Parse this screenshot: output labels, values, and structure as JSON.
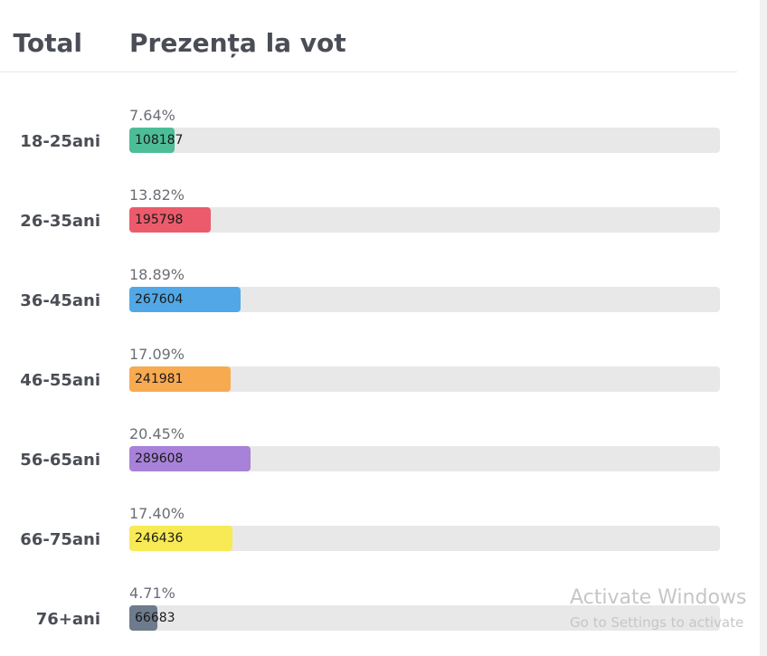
{
  "header": {
    "total_label": "Total",
    "title": "Prezența la vot"
  },
  "chart_data": {
    "type": "bar",
    "orientation": "horizontal",
    "categories": [
      "18-25ani",
      "26-35ani",
      "36-45ani",
      "46-55ani",
      "56-65ani",
      "66-75ani",
      "76+ani"
    ],
    "values": [
      108187,
      195798,
      267604,
      241981,
      289608,
      246436,
      66683
    ],
    "value_labels": [
      "108187",
      "195798",
      "267604",
      "241981",
      "289608",
      "246436",
      "66683"
    ],
    "percent_labels": [
      "7.64%",
      "13.82%",
      "18.89%",
      "17.09%",
      "20.45%",
      "17.40%",
      "4.71%"
    ],
    "percents": [
      7.64,
      13.82,
      18.89,
      17.09,
      20.45,
      17.4,
      4.71
    ],
    "xlim": [
      0,
      100
    ],
    "grid": false,
    "colors": [
      "#4dbd98",
      "#ec5b6b",
      "#52a8e6",
      "#f8aa51",
      "#a782d8",
      "#f7ea55",
      "#6d7b8c"
    ]
  },
  "watermark": {
    "title": "Activate Windows",
    "subtitle": "Go to Settings to activate"
  }
}
